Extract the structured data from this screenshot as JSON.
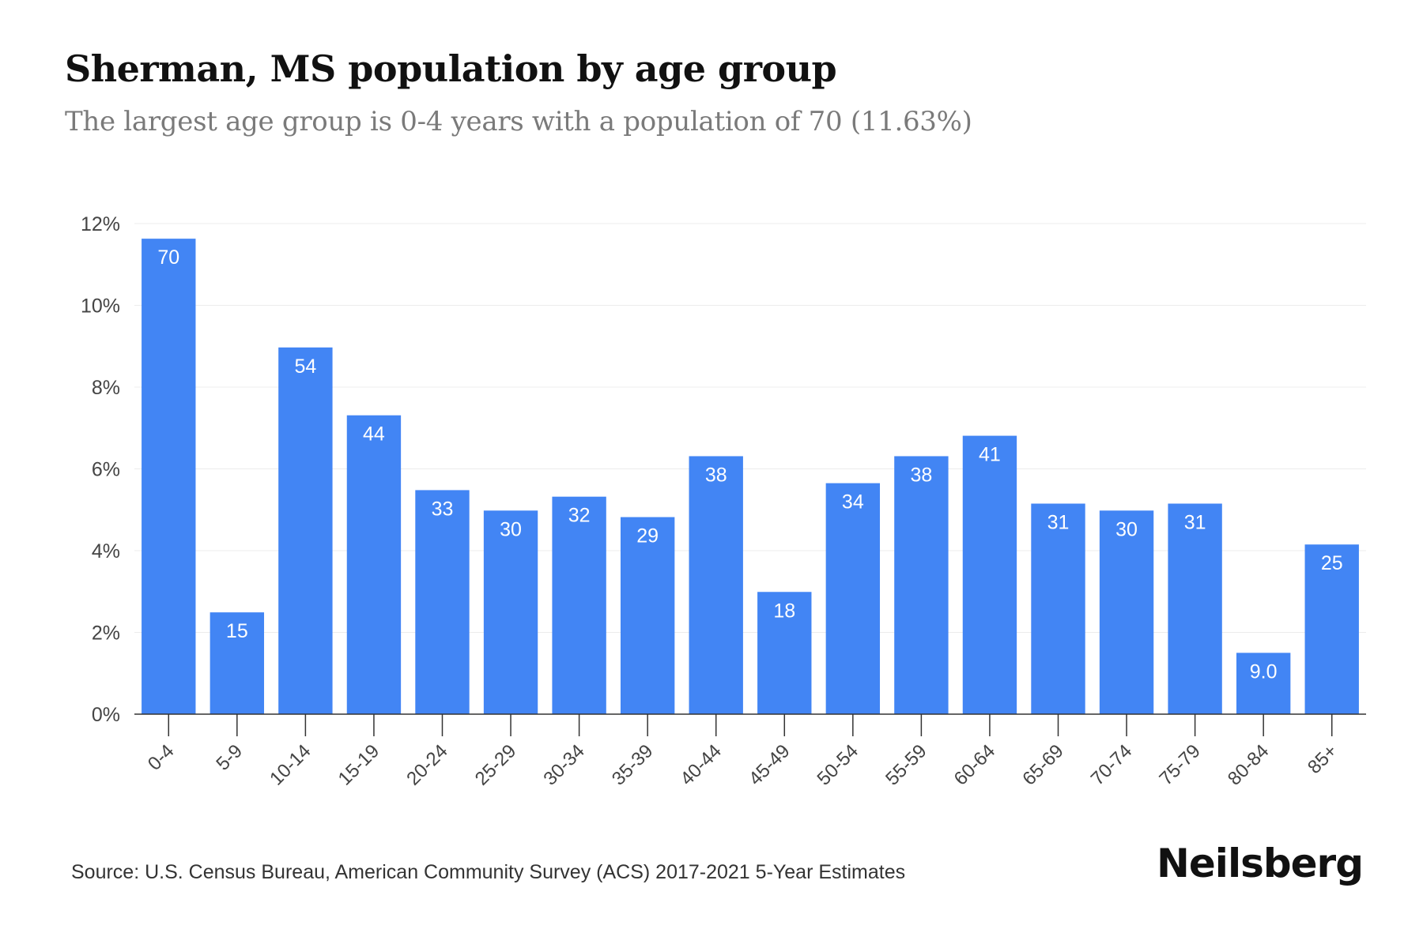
{
  "header": {
    "title": "Sherman, MS population by age group",
    "subtitle": "The largest age group is 0-4 years with a population of 70 (11.63%)"
  },
  "footer": {
    "source": "Source: U.S. Census Bureau, American Community Survey (ACS) 2017-2021 5-Year Estimates",
    "brand": "Neilsberg"
  },
  "colors": {
    "bar": "#4285f4",
    "bar_label": "#ffffff",
    "grid": "#ececec",
    "axis": "#333333",
    "tick_text": "#444444"
  },
  "chart_data": {
    "type": "bar",
    "title": "Sherman, MS population by age group",
    "subtitle": "The largest age group is 0-4 years with a population of 70 (11.63%)",
    "categories": [
      "0-4",
      "5-9",
      "10-14",
      "15-19",
      "20-24",
      "25-29",
      "30-34",
      "35-39",
      "40-44",
      "45-49",
      "50-54",
      "55-59",
      "60-64",
      "65-69",
      "70-74",
      "75-79",
      "80-84",
      "85+"
    ],
    "series": [
      {
        "values": [
          11.63,
          2.49,
          8.97,
          7.31,
          5.48,
          4.98,
          5.32,
          4.82,
          6.31,
          2.99,
          5.65,
          6.31,
          6.81,
          5.15,
          4.98,
          5.15,
          1.5,
          4.15
        ]
      }
    ],
    "data_labels": [
      "70",
      "15",
      "54",
      "44",
      "33",
      "30",
      "32",
      "29",
      "38",
      "18",
      "34",
      "38",
      "41",
      "31",
      "30",
      "31",
      "9.0",
      "25"
    ],
    "y_ticks": [
      "0%",
      "2%",
      "4%",
      "6%",
      "8%",
      "10%",
      "12%"
    ],
    "ylim": [
      0,
      12
    ],
    "y_step": 2,
    "grid": true,
    "legend": "none"
  }
}
